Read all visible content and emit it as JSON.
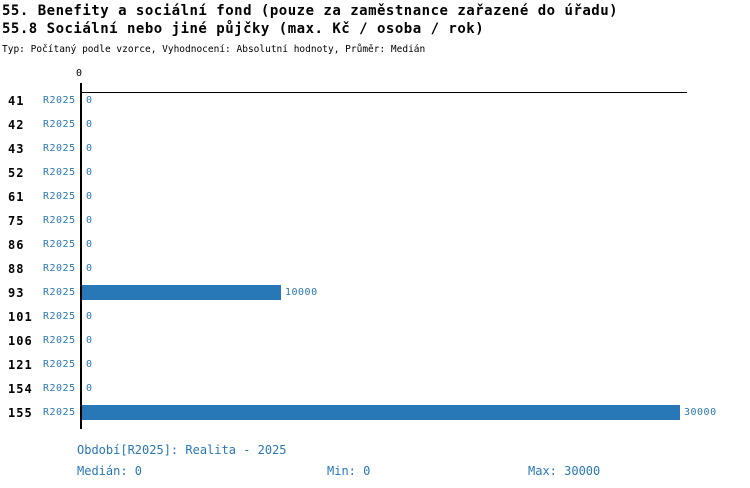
{
  "header": {
    "title": "55. Benefity a sociální fond (pouze za zaměstnance zařazené do úřadu)",
    "subtitle": "55.8 Sociální nebo jiné půjčky (max. Kč / osoba / rok)",
    "meta": "Typ: Počítaný podle vzorce, Vyhodnocení: Absolutní hodnoty, Průměr: Medián"
  },
  "chart_data": {
    "type": "bar",
    "orientation": "horizontal",
    "title": "55.8 Sociální nebo jiné půjčky (max. Kč / osoba / rok)",
    "series_label": "R2025",
    "categories": [
      "41",
      "42",
      "43",
      "52",
      "61",
      "75",
      "86",
      "88",
      "93",
      "101",
      "106",
      "121",
      "154",
      "155"
    ],
    "values": [
      0,
      0,
      0,
      0,
      0,
      0,
      0,
      0,
      10000,
      0,
      0,
      0,
      0,
      30000
    ],
    "value_labels": [
      "0",
      "0",
      "0",
      "0",
      "0",
      "0",
      "0",
      "0",
      "10000",
      "0",
      "0",
      "0",
      "0",
      "30000"
    ],
    "xlim": [
      0,
      30000
    ],
    "x_tick_labels": [
      "0"
    ],
    "grid": false,
    "legend_position": "none",
    "bar_color": "#2878b8",
    "text_color": "#2878b8",
    "axis_color": "#000000"
  },
  "footer": {
    "period": "Období[R2025]: Realita - 2025",
    "median": "Medián: 0",
    "min": "Min: 0",
    "max": "Max: 30000"
  }
}
